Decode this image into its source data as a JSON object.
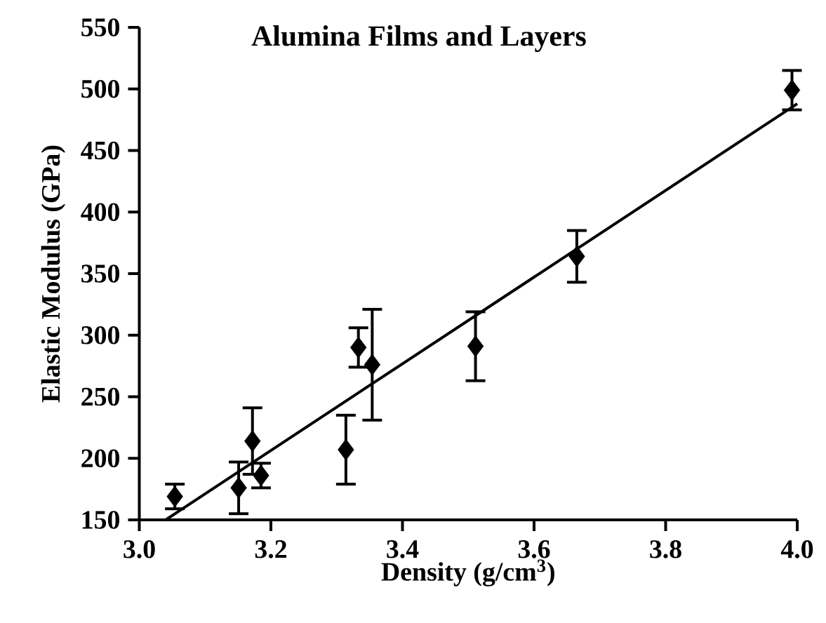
{
  "chart_data": {
    "type": "scatter",
    "title": "Alumina Films and Layers",
    "xlabel": "Density (g/cm$^{3}$)",
    "ylabel": "Elastic Modulus (GPa)",
    "xlim": [
      3.0,
      4.0
    ],
    "ylim": [
      150,
      550
    ],
    "xticks": [
      {
        "value": 3.0,
        "label": "3.0"
      },
      3.2,
      3.4,
      3.6,
      3.8,
      {
        "value": 4.0,
        "label": "4.0"
      }
    ],
    "yticks": [
      150,
      200,
      250,
      300,
      350,
      400,
      450,
      500,
      550
    ],
    "grid": false,
    "series": [
      {
        "color": "#000000",
        "marker": "diamond",
        "x": [
          3.054,
          3.151,
          3.172,
          3.185,
          3.314,
          3.333,
          3.354,
          3.511,
          3.665,
          3.992
        ],
        "values": [
          169,
          176,
          214,
          186,
          207,
          290,
          276,
          291,
          364,
          499
        ],
        "errors": [
          10,
          21,
          27,
          10,
          28,
          16,
          45,
          28,
          21,
          16
        ]
      },
      {
        "type": "line",
        "color": "#000000",
        "marker": "none",
        "line_style": "solid",
        "x": [
          3.04,
          4.0
        ],
        "values": [
          150,
          488
        ]
      }
    ]
  }
}
